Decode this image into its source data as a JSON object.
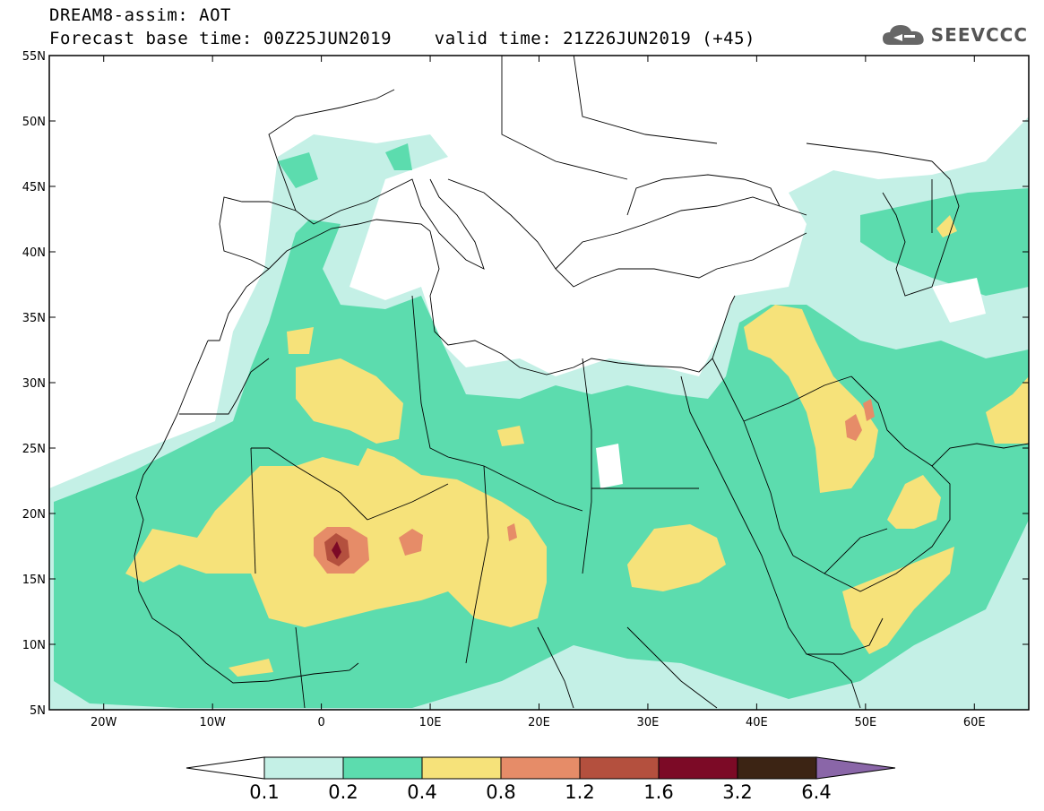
{
  "title": {
    "line1": "DREAM8-assim: AOT",
    "line2": "Forecast base time: 00Z25JUN2019    valid time: 21Z26JUN2019 (+45)"
  },
  "logo": {
    "text": "SEEVCCC",
    "icon": "cloud-icon"
  },
  "map": {
    "lon_range": [
      -25,
      65
    ],
    "lat_range": [
      5,
      55
    ],
    "lon_ticks": [
      {
        "value": -20,
        "label": "20W"
      },
      {
        "value": -10,
        "label": "10W"
      },
      {
        "value": 0,
        "label": "0"
      },
      {
        "value": 10,
        "label": "10E"
      },
      {
        "value": 20,
        "label": "20E"
      },
      {
        "value": 30,
        "label": "30E"
      },
      {
        "value": 40,
        "label": "40E"
      },
      {
        "value": 50,
        "label": "50E"
      },
      {
        "value": 60,
        "label": "60E"
      }
    ],
    "lat_ticks": [
      {
        "value": 55,
        "label": "55N"
      },
      {
        "value": 50,
        "label": "50N"
      },
      {
        "value": 45,
        "label": "45N"
      },
      {
        "value": 40,
        "label": "40N"
      },
      {
        "value": 35,
        "label": "35N"
      },
      {
        "value": 30,
        "label": "30N"
      },
      {
        "value": 25,
        "label": "25N"
      },
      {
        "value": 20,
        "label": "20N"
      },
      {
        "value": 15,
        "label": "15N"
      },
      {
        "value": 10,
        "label": "10N"
      },
      {
        "value": 5,
        "label": "5N"
      }
    ]
  },
  "colorbar": {
    "labels": [
      "0.1",
      "0.2",
      "0.4",
      "0.8",
      "1.2",
      "1.6",
      "3.2",
      "6.4"
    ],
    "colors": [
      "#c4f0e6",
      "#5cdcae",
      "#f6e27a",
      "#e68c68",
      "#b4503e",
      "#7c0a26",
      "#3c2414",
      "#8a66a8"
    ],
    "low_color": "#ffffff"
  }
}
